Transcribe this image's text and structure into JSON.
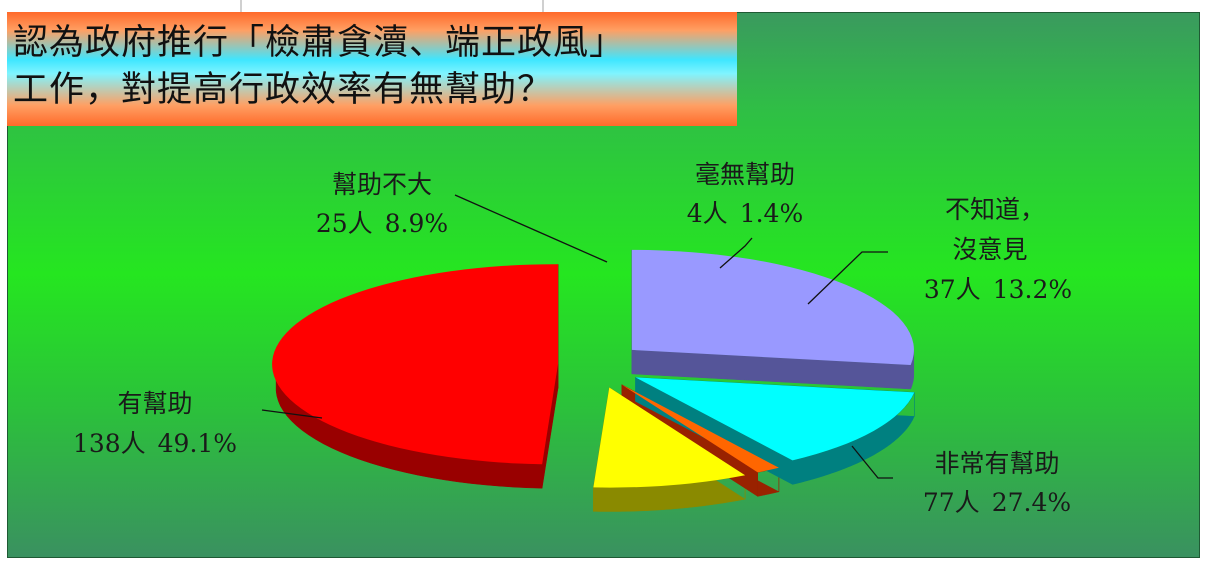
{
  "title": {
    "line1": "認為政府推行「檢肅貪瀆、端正政風」",
    "line2": "工作，對提高行政效率有無幫助？"
  },
  "chart_data": {
    "type": "pie",
    "title": "認為政府推行「檢肅貪瀆、端正政風」工作，對提高行政效率有無幫助？",
    "slices": [
      {
        "label": "有幫助",
        "count": 138,
        "count_text": "138人",
        "percent": 49.1,
        "percent_text": "49.1%",
        "color": "#ff0000",
        "side_color": "#990000"
      },
      {
        "label": "幫助不大",
        "count": 25,
        "count_text": "25人",
        "percent": 8.9,
        "percent_text": "8.9%",
        "color": "#ffff00",
        "side_color": "#8a8a00"
      },
      {
        "label": "毫無幫助",
        "count": 4,
        "count_text": "4人",
        "percent": 1.4,
        "percent_text": "1.4%",
        "color": "#ff6600",
        "side_color": "#992200"
      },
      {
        "label_lines": [
          "不知道，",
          "沒意見"
        ],
        "label": "不知道，沒意見",
        "count": 37,
        "count_text": "37人",
        "percent": 13.2,
        "percent_text": "13.2%",
        "color": "#00ffff",
        "side_color": "#008080"
      },
      {
        "label": "非常有幫助",
        "count": 77,
        "count_text": "77人",
        "percent": 27.4,
        "percent_text": "27.4%",
        "color": "#9999ff",
        "side_color": "#555599"
      }
    ]
  }
}
